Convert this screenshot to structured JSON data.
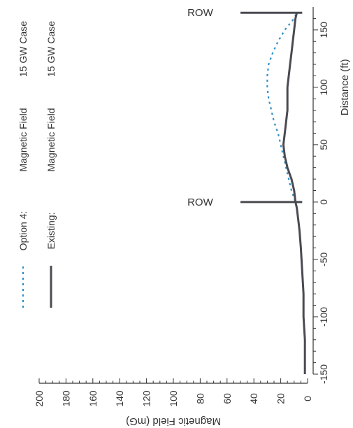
{
  "chart_data": {
    "type": "line",
    "title": "",
    "xlabel": "Distance (ft)",
    "ylabel": "Magnetic Field (mG)",
    "xlim": [
      -150,
      170
    ],
    "ylim": [
      0,
      200
    ],
    "x_ticks": [
      "-150",
      "-100",
      "-50",
      "0",
      "50",
      "100",
      "150"
    ],
    "y_ticks": [
      "200",
      "180",
      "160",
      "140",
      "120",
      "100",
      "80",
      "60",
      "40",
      "20",
      "0"
    ],
    "row_label": "ROW",
    "row_markers": [
      {
        "x": 0,
        "label": "ROW"
      },
      {
        "x": 165,
        "label": "ROW"
      }
    ],
    "legend": {
      "placement": "top",
      "entries": [
        {
          "key": "Option 4:",
          "col2": "Magnetic Field",
          "col3": "15 GW Case",
          "color": "#2f8fc8",
          "style": "dotted"
        },
        {
          "key": "Existing:",
          "col2": "Magnetic Field",
          "col3": "15 GW Case",
          "color": "#4a4a52",
          "style": "solid"
        }
      ]
    },
    "series": [
      {
        "name": "Option 4",
        "color": "#2f8fc8",
        "style": "dotted",
        "x": [
          -150,
          -120,
          -100,
          -80,
          -60,
          -40,
          -25,
          -15,
          -5,
          0,
          10,
          20,
          30,
          40,
          50,
          60,
          70,
          80,
          90,
          100,
          110,
          120,
          130,
          140,
          150,
          160,
          165
        ],
        "y": [
          2,
          2,
          3,
          3,
          4,
          5,
          6,
          7,
          8,
          9,
          12,
          14,
          16,
          18,
          20,
          22,
          25,
          27,
          29,
          30,
          30,
          29,
          26,
          22,
          17,
          10,
          8
        ]
      },
      {
        "name": "Existing",
        "color": "#4a4a52",
        "style": "solid",
        "x": [
          -150,
          -120,
          -100,
          -80,
          -60,
          -40,
          -25,
          -15,
          -5,
          0,
          10,
          20,
          30,
          40,
          50,
          60,
          70,
          80,
          90,
          100,
          110,
          120,
          130,
          140,
          150,
          160,
          165
        ],
        "y": [
          2,
          2,
          3,
          3,
          4,
          5,
          6,
          7,
          8,
          9,
          10,
          12,
          15,
          17,
          18,
          17,
          16,
          15,
          15,
          15,
          14,
          13,
          12,
          11,
          10,
          9,
          8
        ]
      }
    ]
  }
}
